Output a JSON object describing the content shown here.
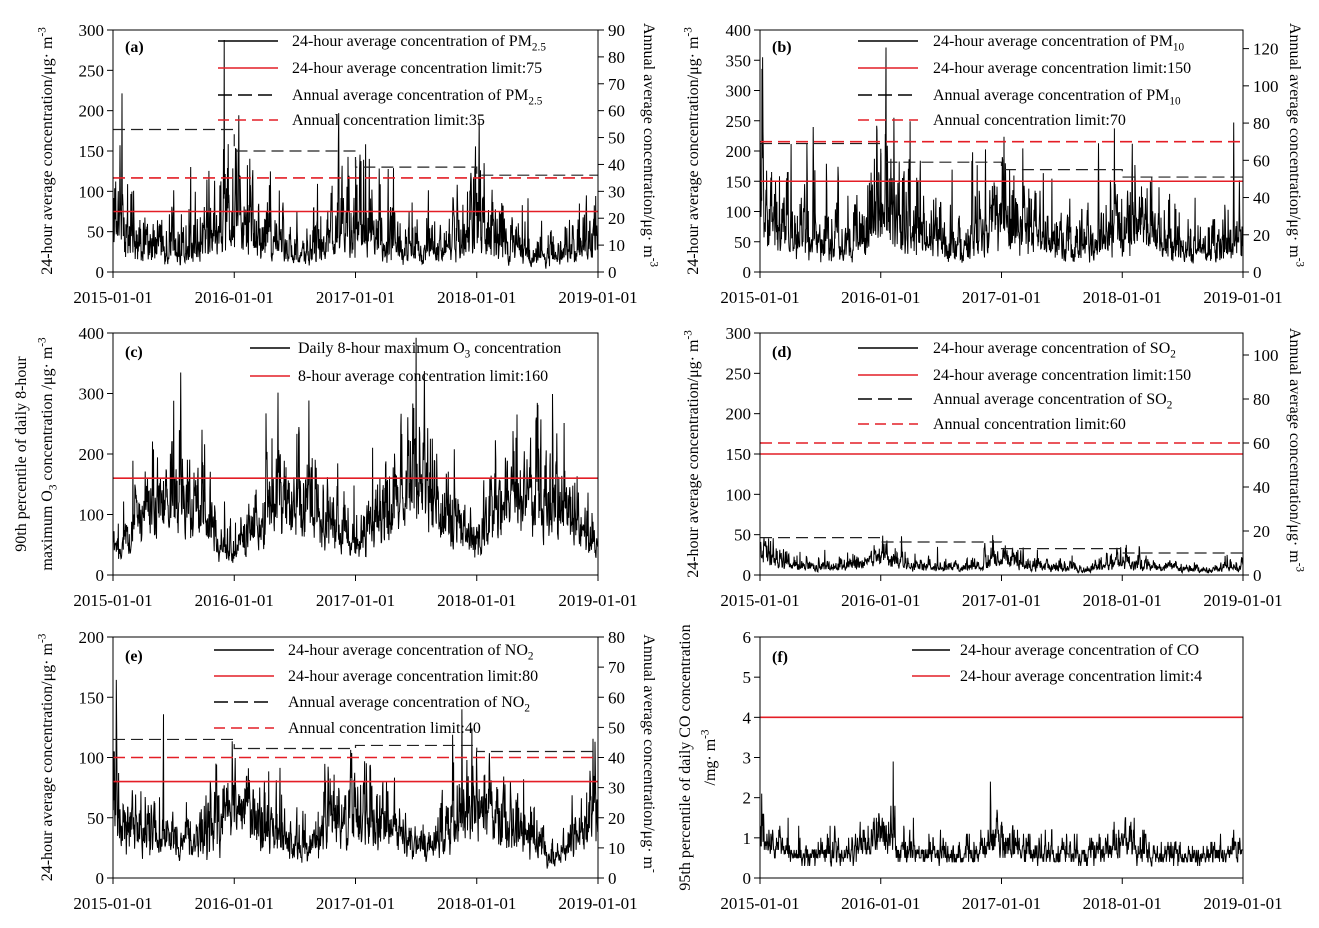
{
  "chart_data": [
    {
      "id": "a",
      "type": "line",
      "panel_label": "(a)",
      "x_ticks": [
        "2015-01-01",
        "2016-01-01",
        "2017-01-01",
        "2018-01-01",
        "2019-01-01"
      ],
      "ylim": [
        0,
        300
      ],
      "y_ticks": [
        0,
        50,
        100,
        150,
        200,
        250,
        300
      ],
      "y2lim": [
        0,
        90
      ],
      "y2_ticks": [
        0,
        10,
        20,
        30,
        40,
        50,
        60,
        70,
        80,
        90
      ],
      "ylabel": [
        [
          {
            "t": "24-hour average concentration/μg· m"
          },
          {
            "sup": "-3"
          }
        ]
      ],
      "y2label": [
        [
          {
            "t": "Annual average concentration/μg· m"
          },
          {
            "sup": "-3"
          }
        ]
      ],
      "legend": [
        {
          "style": "black-solid",
          "label": [
            {
              "t": "24-hour average concentration of PM"
            },
            {
              "sub": "2.5"
            }
          ]
        },
        {
          "style": "red-solid",
          "label": [
            {
              "t": "24-hour average concentration limit:75"
            }
          ]
        },
        {
          "style": "black-dash",
          "label": [
            {
              "t": "Annual average concentration of PM"
            },
            {
              "sub": "2.5"
            }
          ]
        },
        {
          "style": "red-dash",
          "label": [
            {
              "t": "Annual concentration limit:35"
            }
          ]
        }
      ],
      "daily_limit": 75,
      "annual_limit": 35,
      "annual_avg": [
        53,
        45,
        39,
        36
      ],
      "monthly_level": [
        70,
        55,
        45,
        40,
        35,
        30,
        25,
        28,
        35,
        40,
        55,
        75,
        80,
        55,
        45,
        40,
        35,
        30,
        28,
        25,
        30,
        40,
        45,
        60,
        55,
        45,
        40,
        35,
        30,
        28,
        25,
        25,
        30,
        35,
        45,
        55,
        60,
        45,
        40,
        35,
        30,
        28,
        25,
        22,
        25,
        30,
        35,
        40
      ],
      "noise": 0.45,
      "seed": 11
    },
    {
      "id": "b",
      "type": "line",
      "panel_label": "(b)",
      "x_ticks": [
        "2015-01-01",
        "2016-01-01",
        "2017-01-01",
        "2018-01-01",
        "2019-01-01"
      ],
      "ylim": [
        0,
        400
      ],
      "y_ticks": [
        0,
        50,
        100,
        150,
        200,
        250,
        300,
        350,
        400
      ],
      "y2lim": [
        0,
        130
      ],
      "y2_ticks": [
        0,
        20,
        40,
        60,
        80,
        100,
        120
      ],
      "ylabel": [
        [
          {
            "t": "24-hour average concentration/μg· m"
          },
          {
            "sup": "-3"
          }
        ]
      ],
      "y2label": [
        [
          {
            "t": "Annual average concentration/μg· m"
          },
          {
            "sup": "-3"
          }
        ]
      ],
      "legend": [
        {
          "style": "black-solid",
          "label": [
            {
              "t": "24-hour average concentration of  PM"
            },
            {
              "sub": "10"
            }
          ]
        },
        {
          "style": "red-solid",
          "label": [
            {
              "t": "24-hour average concentration limit:150"
            }
          ]
        },
        {
          "style": "black-dash",
          "label": [
            {
              "t": "Annual average concentration of PM"
            },
            {
              "sub": "10"
            }
          ]
        },
        {
          "style": "red-dash",
          "label": [
            {
              "t": "Annual concentration limit:70"
            }
          ]
        }
      ],
      "daily_limit": 150,
      "annual_limit": 70,
      "annual_avg": [
        69,
        59,
        55,
        51
      ],
      "monthly_level": [
        110,
        90,
        80,
        70,
        60,
        55,
        45,
        45,
        55,
        60,
        80,
        100,
        110,
        90,
        85,
        75,
        65,
        55,
        45,
        40,
        50,
        60,
        70,
        90,
        80,
        70,
        65,
        60,
        55,
        50,
        45,
        40,
        45,
        55,
        65,
        80,
        80,
        75,
        70,
        60,
        55,
        50,
        40,
        35,
        40,
        45,
        55,
        60
      ],
      "noise": 0.42,
      "seed": 23
    },
    {
      "id": "c",
      "type": "line",
      "panel_label": "(c)",
      "x_ticks": [
        "2015-01-01",
        "2016-01-01",
        "2017-01-01",
        "2018-01-01",
        "2019-01-01"
      ],
      "ylim": [
        0,
        400
      ],
      "y_ticks": [
        0,
        100,
        200,
        300,
        400
      ],
      "ylabel": [
        [
          {
            "t": "90th percentile of daily 8-hour"
          }
        ],
        [
          {
            "t": "maximum O"
          },
          {
            "sub": "3"
          },
          {
            "t": " concentration /μg· m"
          },
          {
            "sup": "-3"
          }
        ]
      ],
      "legend": [
        {
          "style": "black-solid",
          "label": [
            {
              "t": "Daily 8-hour maximum O"
            },
            {
              "sub": "3"
            },
            {
              "t": " concentration"
            }
          ]
        },
        {
          "style": "red-solid",
          "label": [
            {
              "t": "8-hour average concentration limit:160"
            }
          ]
        }
      ],
      "daily_limit": 160,
      "monthly_level": [
        45,
        60,
        80,
        100,
        120,
        130,
        120,
        110,
        110,
        90,
        55,
        45,
        55,
        70,
        90,
        110,
        120,
        120,
        130,
        120,
        100,
        80,
        60,
        55,
        60,
        80,
        100,
        120,
        140,
        160,
        150,
        140,
        110,
        90,
        70,
        60,
        60,
        90,
        110,
        130,
        140,
        140,
        130,
        120,
        110,
        90,
        70,
        55
      ],
      "noise": 0.3,
      "seed": 37
    },
    {
      "id": "d",
      "type": "line",
      "panel_label": "(d)",
      "x_ticks": [
        "2015-01-01",
        "2016-01-01",
        "2017-01-01",
        "2018-01-01",
        "2019-01-01"
      ],
      "ylim": [
        0,
        300
      ],
      "y_ticks": [
        0,
        50,
        100,
        150,
        200,
        250,
        300
      ],
      "y2lim": [
        0,
        110
      ],
      "y2_ticks": [
        0,
        20,
        40,
        60,
        80,
        100
      ],
      "ylabel": [
        [
          {
            "t": "24-hour average concentration/μg· m"
          },
          {
            "sup": "-3"
          }
        ]
      ],
      "y2label": [
        [
          {
            "t": "Annual average concentration/μg· m"
          },
          {
            "sup": "-3"
          }
        ]
      ],
      "legend": [
        {
          "style": "black-solid",
          "label": [
            {
              "t": "24-hour average concentration of  SO"
            },
            {
              "sub": "2"
            }
          ]
        },
        {
          "style": "red-solid",
          "label": [
            {
              "t": "24-hour average concentration limit:150"
            }
          ]
        },
        {
          "style": "black-dash",
          "label": [
            {
              "t": "Annual average concentration of SO"
            },
            {
              "sub": "2"
            }
          ]
        },
        {
          "style": "red-dash",
          "label": [
            {
              "t": "Annual concentration limit:60"
            }
          ]
        }
      ],
      "daily_limit": 150,
      "annual_limit": 60,
      "annual_avg": [
        17,
        15,
        12,
        10
      ],
      "monthly_level": [
        30,
        18,
        14,
        12,
        10,
        10,
        9,
        10,
        12,
        13,
        16,
        22,
        25,
        18,
        15,
        13,
        12,
        10,
        9,
        9,
        10,
        11,
        14,
        20,
        18,
        15,
        13,
        11,
        10,
        9,
        8,
        8,
        9,
        11,
        13,
        16,
        16,
        14,
        12,
        10,
        9,
        8,
        7,
        7,
        7,
        8,
        9,
        10
      ],
      "noise": 0.35,
      "seed": 41
    },
    {
      "id": "e",
      "type": "line",
      "panel_label": "(e)",
      "x_ticks": [
        "2015-01-01",
        "2016-01-01",
        "2017-01-01",
        "2018-01-01",
        "2019-01-01"
      ],
      "ylim": [
        0,
        200
      ],
      "y_ticks": [
        0,
        50,
        100,
        150,
        200
      ],
      "y2lim": [
        0,
        80
      ],
      "y2_ticks": [
        0,
        10,
        20,
        30,
        40,
        50,
        60,
        70,
        80
      ],
      "ylabel": [
        [
          {
            "t": "24-hour average concentration/μg· m"
          },
          {
            "sup": "-3"
          }
        ]
      ],
      "y2label": [
        [
          {
            "t": "Annual average concentration/μg· m"
          },
          {
            "sup": "-"
          }
        ]
      ],
      "legend": [
        {
          "style": "black-solid",
          "label": [
            {
              "t": "24-hour average concentration of  NO"
            },
            {
              "sub": "2"
            }
          ]
        },
        {
          "style": "red-solid",
          "label": [
            {
              "t": "24-hour average concentration limit:80"
            }
          ]
        },
        {
          "style": "black-dash",
          "label": [
            {
              "t": "Annual average concentration of NO"
            },
            {
              "sub": "2"
            }
          ]
        },
        {
          "style": "red-dash",
          "label": [
            {
              "t": "Annual concentration limit:40"
            }
          ]
        }
      ],
      "daily_limit": 80,
      "annual_limit": 40,
      "annual_avg": [
        46,
        43,
        44,
        42
      ],
      "monthly_level": [
        60,
        45,
        40,
        38,
        35,
        32,
        28,
        30,
        35,
        40,
        50,
        62,
        65,
        50,
        45,
        40,
        38,
        32,
        25,
        22,
        30,
        38,
        48,
        58,
        55,
        45,
        42,
        40,
        38,
        32,
        28,
        28,
        35,
        42,
        52,
        60,
        62,
        50,
        45,
        40,
        38,
        32,
        25,
        18,
        25,
        32,
        40,
        55
      ],
      "noise": 0.3,
      "seed": 53
    },
    {
      "id": "f",
      "type": "line",
      "panel_label": "(f)",
      "x_ticks": [
        "2015-01-01",
        "2016-01-01",
        "2017-01-01",
        "2018-01-01",
        "2019-01-01"
      ],
      "ylim": [
        0,
        6
      ],
      "y_ticks": [
        0,
        1,
        2,
        3,
        4,
        5,
        6
      ],
      "ylabel": [
        [
          {
            "t": "95th percentile of daily CO concentration"
          }
        ],
        [
          {
            "t": "/mg· m"
          },
          {
            "sup": "-3"
          }
        ]
      ],
      "legend": [
        {
          "style": "black-solid",
          "label": [
            {
              "t": "24-hour average concentration of  CO"
            }
          ]
        },
        {
          "style": "red-solid",
          "label": [
            {
              "t": "24-hour average concentration limit:4"
            }
          ]
        }
      ],
      "daily_limit": 4,
      "monthly_level": [
        1.0,
        0.8,
        0.7,
        0.6,
        0.6,
        0.6,
        0.6,
        0.6,
        0.6,
        0.7,
        0.85,
        1.0,
        1.0,
        0.8,
        0.7,
        0.6,
        0.6,
        0.6,
        0.6,
        0.55,
        0.6,
        0.65,
        0.8,
        0.95,
        0.85,
        0.7,
        0.65,
        0.6,
        0.6,
        0.55,
        0.55,
        0.55,
        0.6,
        0.7,
        0.75,
        0.9,
        0.85,
        0.7,
        0.65,
        0.6,
        0.6,
        0.55,
        0.5,
        0.45,
        0.5,
        0.6,
        0.65,
        0.7
      ],
      "noise": 0.25,
      "seed": 67,
      "quantize": 0.1
    }
  ],
  "colors": {
    "series": "#000000",
    "limit": "#e41e26",
    "annual": "#222222"
  }
}
